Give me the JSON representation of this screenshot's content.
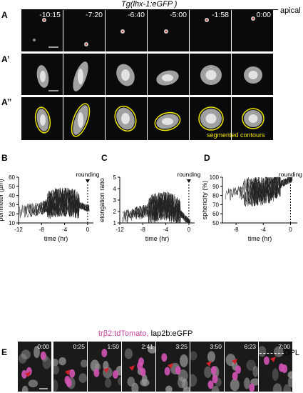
{
  "header": {
    "title": "Tg(lhx-1:eGFP )",
    "apical": "apical",
    "times": [
      "-10:15",
      "-7:20",
      "-6:40",
      "-5:00",
      "-1:58",
      "0:00"
    ]
  },
  "labels": {
    "A": "A",
    "A1": "A’",
    "A2": "A’’",
    "B": "B",
    "C": "C",
    "D": "D",
    "E": "E",
    "E1": "E’"
  },
  "contours_label": "segmented contours",
  "colors": {
    "contour": "#f2e600",
    "magenta": "#d154b4",
    "arrow": "#d0222a"
  },
  "chart_data": [
    {
      "type": "line",
      "panel": "B",
      "xlabel": "time (hr)",
      "ylabel": "perimeter (µm)",
      "xlim": [
        -12,
        1
      ],
      "ylim": [
        10,
        60
      ],
      "xticks": [
        -12,
        -8,
        -4,
        0
      ],
      "yticks": [
        10,
        20,
        30,
        40,
        50,
        60
      ],
      "annotation": "rounding",
      "series_summary": {
        "mean": [
          [
            -12,
            22
          ],
          [
            -10,
            24
          ],
          [
            -8,
            26
          ],
          [
            -6,
            32
          ],
          [
            -4,
            33
          ],
          [
            -2,
            31
          ],
          [
            0,
            26
          ]
        ]
      }
    },
    {
      "type": "line",
      "panel": "C",
      "xlabel": "time (hr)",
      "ylabel": "elongation ratio",
      "xlim": [
        -12,
        1
      ],
      "ylim": [
        1,
        5
      ],
      "xticks": [
        -12,
        -8,
        -4,
        0
      ],
      "yticks": [
        1,
        2,
        3,
        4,
        5
      ],
      "annotation": "rounding",
      "series_summary": {
        "mean": [
          [
            -12,
            1.5
          ],
          [
            -10,
            1.7
          ],
          [
            -8,
            2.0
          ],
          [
            -6,
            2.3
          ],
          [
            -4,
            2.5
          ],
          [
            -2,
            2.1
          ],
          [
            0,
            1.1
          ]
        ]
      }
    },
    {
      "type": "line",
      "panel": "D",
      "xlabel": "time (hr)",
      "ylabel": "sphericity (%)",
      "xlim": [
        -10,
        1
      ],
      "ylim": [
        50,
        100
      ],
      "xticks": [
        -8,
        -4,
        0
      ],
      "yticks": [
        50,
        60,
        70,
        80,
        90,
        100
      ],
      "annotation": "rounding",
      "series_summary": {
        "mean": [
          [
            -10,
            80
          ],
          [
            -8,
            82
          ],
          [
            -6,
            84
          ],
          [
            -4,
            85
          ],
          [
            -2,
            90
          ],
          [
            0,
            98
          ]
        ]
      }
    }
  ],
  "panelE": {
    "legend_magenta": "trβ2:tdTomato,",
    "legend_black": " lap2b:eGFP",
    "times": [
      "0:00",
      "0:25",
      "1:50",
      "2:41",
      "3:25",
      "3:50",
      "6:23",
      "7:00"
    ],
    "opl": "OPL",
    "lap2b": "lap2b"
  }
}
